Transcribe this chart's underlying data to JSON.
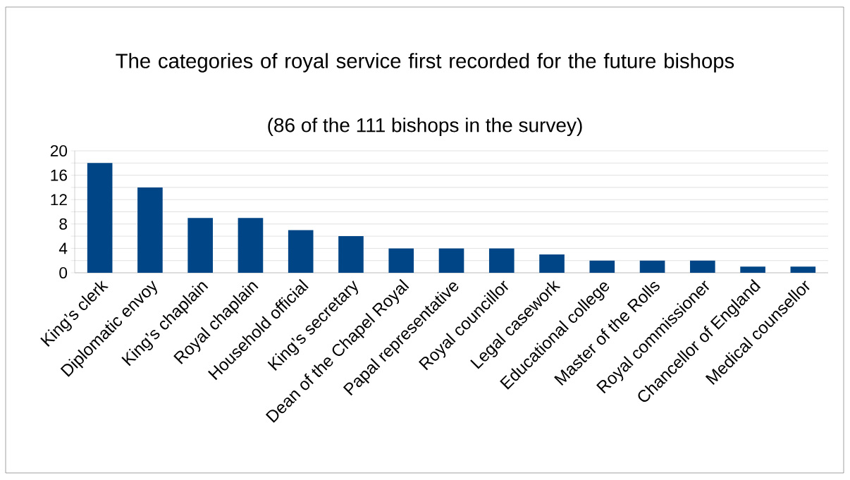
{
  "chart_data": {
    "type": "bar",
    "title": "The categories of royal service first recorded for the future bishops",
    "subtitle": "(86 of the 111 bishops in the survey)",
    "categories": [
      "King’s clerk",
      "Diplomatic envoy",
      "King’s chaplain",
      "Royal chaplain",
      "Household official",
      "King’s secretary",
      "Dean of the Chapel Royal",
      "Papal representative",
      "Royal councillor",
      "Legal casework",
      "Educational college",
      "Master of the Rolls",
      "Royal commissioner",
      "Chancellor of England",
      "Medical counsellor"
    ],
    "values": [
      18,
      14,
      9,
      9,
      7,
      6,
      4,
      4,
      4,
      3,
      2,
      2,
      2,
      1,
      1
    ],
    "color": "#004586",
    "ylim": [
      0,
      20
    ],
    "yticks": [
      0,
      {
        "value": 2,
        "label": null
      },
      4,
      {
        "value": 6,
        "label": null
      },
      8,
      {
        "value": 10,
        "label": null
      },
      12,
      {
        "value": 14,
        "label": null
      },
      16,
      {
        "value": 18,
        "label": null
      },
      20
    ],
    "grid": "y"
  }
}
